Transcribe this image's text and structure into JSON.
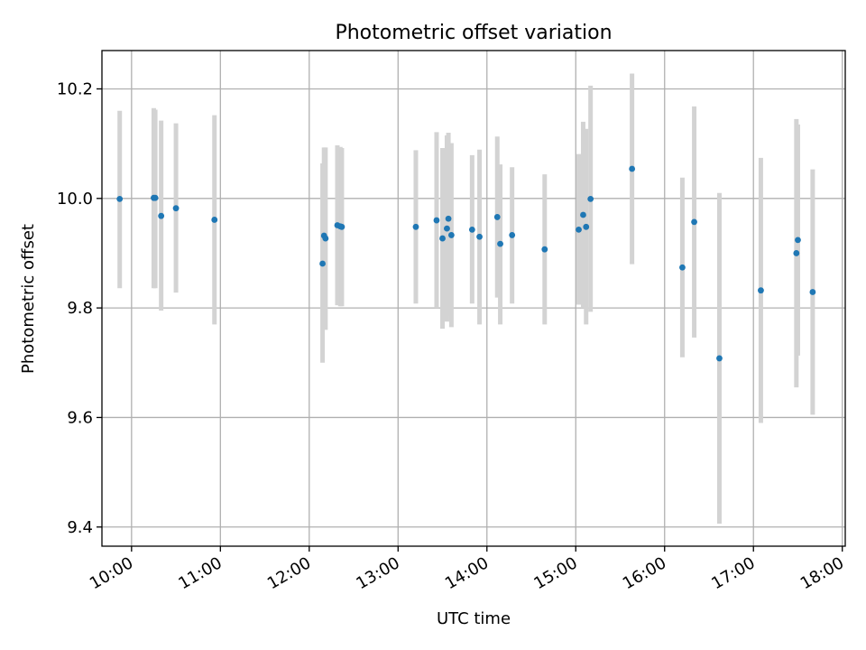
{
  "chart_data": {
    "type": "scatter",
    "title": "Photometric offset variation",
    "xlabel": "UTC time",
    "ylabel": "Photometric offset",
    "xlim": [
      "09:40",
      "18:02"
    ],
    "ylim": [
      9.365,
      10.27
    ],
    "grid": true,
    "x_ticks": [
      "10:00",
      "11:00",
      "12:00",
      "13:00",
      "14:00",
      "15:00",
      "16:00",
      "17:00",
      "18:00"
    ],
    "y_ticks": [
      "9.4",
      "9.6",
      "9.8",
      "10.0",
      "10.2"
    ],
    "point_color": "#1f77b4",
    "errorbar_color": "#d3d3d3",
    "series": [
      {
        "points": [
          {
            "x": "09:52",
            "y": 9.999,
            "ylo": 9.836,
            "yhi": 10.16
          },
          {
            "x": "10:15",
            "y": 10.001,
            "ylo": 9.836,
            "yhi": 10.165
          },
          {
            "x": "10:16",
            "y": 10.001,
            "ylo": 9.836,
            "yhi": 10.162
          },
          {
            "x": "10:20",
            "y": 9.968,
            "ylo": 9.795,
            "yhi": 10.142
          },
          {
            "x": "10:30",
            "y": 9.982,
            "ylo": 9.828,
            "yhi": 10.137
          },
          {
            "x": "10:56",
            "y": 9.961,
            "ylo": 9.77,
            "yhi": 10.152
          },
          {
            "x": "12:09",
            "y": 9.881,
            "ylo": 9.7,
            "yhi": 10.064
          },
          {
            "x": "12:10",
            "y": 9.932,
            "ylo": 9.775,
            "yhi": 10.093
          },
          {
            "x": "12:11",
            "y": 9.927,
            "ylo": 9.76,
            "yhi": 10.093
          },
          {
            "x": "12:19",
            "y": 9.951,
            "ylo": 9.805,
            "yhi": 10.097
          },
          {
            "x": "12:21",
            "y": 9.949,
            "ylo": 9.803,
            "yhi": 10.094
          },
          {
            "x": "12:22",
            "y": 9.948,
            "ylo": 9.803,
            "yhi": 10.092
          },
          {
            "x": "13:12",
            "y": 9.948,
            "ylo": 9.808,
            "yhi": 10.088
          },
          {
            "x": "13:26",
            "y": 9.96,
            "ylo": 9.8,
            "yhi": 10.121
          },
          {
            "x": "13:30",
            "y": 9.927,
            "ylo": 9.762,
            "yhi": 10.092
          },
          {
            "x": "13:33",
            "y": 9.945,
            "ylo": 9.775,
            "yhi": 10.115
          },
          {
            "x": "13:34",
            "y": 9.963,
            "ylo": 9.785,
            "yhi": 10.12
          },
          {
            "x": "13:36",
            "y": 9.933,
            "ylo": 9.765,
            "yhi": 10.101
          },
          {
            "x": "13:50",
            "y": 9.943,
            "ylo": 9.808,
            "yhi": 10.079
          },
          {
            "x": "13:55",
            "y": 9.93,
            "ylo": 9.77,
            "yhi": 10.089
          },
          {
            "x": "14:07",
            "y": 9.966,
            "ylo": 9.819,
            "yhi": 10.113
          },
          {
            "x": "14:09",
            "y": 9.917,
            "ylo": 9.77,
            "yhi": 10.062
          },
          {
            "x": "14:17",
            "y": 9.933,
            "ylo": 9.808,
            "yhi": 10.057
          },
          {
            "x": "14:39",
            "y": 9.907,
            "ylo": 9.77,
            "yhi": 10.044
          },
          {
            "x": "15:02",
            "y": 9.943,
            "ylo": 9.806,
            "yhi": 10.081
          },
          {
            "x": "15:05",
            "y": 9.97,
            "ylo": 9.8,
            "yhi": 10.14
          },
          {
            "x": "15:07",
            "y": 9.948,
            "ylo": 9.77,
            "yhi": 10.127
          },
          {
            "x": "15:10",
            "y": 9.999,
            "ylo": 9.793,
            "yhi": 10.206
          },
          {
            "x": "15:38",
            "y": 10.054,
            "ylo": 9.88,
            "yhi": 10.228
          },
          {
            "x": "16:12",
            "y": 9.874,
            "ylo": 9.71,
            "yhi": 10.038
          },
          {
            "x": "16:20",
            "y": 9.957,
            "ylo": 9.746,
            "yhi": 10.168
          },
          {
            "x": "16:37",
            "y": 9.708,
            "ylo": 9.406,
            "yhi": 10.01
          },
          {
            "x": "17:05",
            "y": 9.832,
            "ylo": 9.59,
            "yhi": 10.074
          },
          {
            "x": "17:29",
            "y": 9.9,
            "ylo": 9.655,
            "yhi": 10.145
          },
          {
            "x": "17:30",
            "y": 9.924,
            "ylo": 9.713,
            "yhi": 10.135
          },
          {
            "x": "17:40",
            "y": 9.829,
            "ylo": 9.605,
            "yhi": 10.053
          }
        ]
      }
    ]
  }
}
